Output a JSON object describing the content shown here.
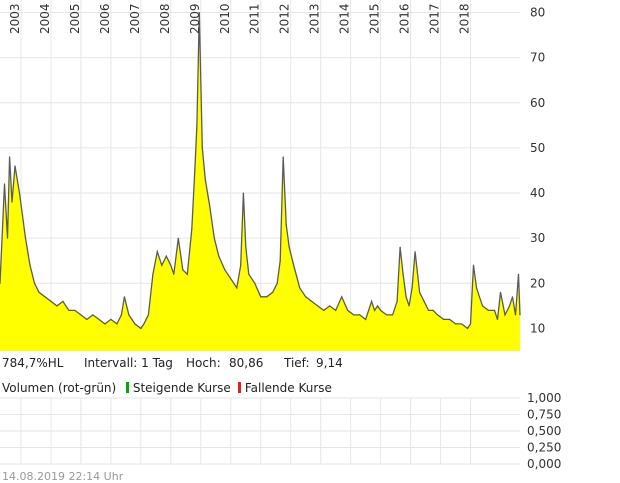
{
  "chart_data": [
    {
      "type": "area",
      "x_tick_labels": [
        "2003",
        "2004",
        "2005",
        "2006",
        "2007",
        "2008",
        "2009",
        "2010",
        "2011",
        "2012",
        "2013",
        "2014",
        "2015",
        "2016",
        "2017",
        "2018"
      ],
      "y_tick_labels": [
        "10",
        "20",
        "30",
        "40",
        "50",
        "60",
        "70",
        "80"
      ],
      "ylim": [
        5,
        81
      ],
      "xlim": [
        2002.3,
        2019.65
      ],
      "grid": true,
      "fill_color": "#ffff00",
      "line_color": "#5a5a5a",
      "series": [
        {
          "x": [
            2002.3,
            2002.45,
            2002.55,
            2002.62,
            2002.7,
            2002.8,
            2002.95,
            2003.05,
            2003.15,
            2003.3,
            2003.45,
            2003.6,
            2003.8,
            2004.0,
            2004.2,
            2004.4,
            2004.6,
            2004.8,
            2005.0,
            2005.2,
            2005.4,
            2005.6,
            2005.8,
            2006.0,
            2006.2,
            2006.35,
            2006.45,
            2006.6,
            2006.8,
            2007.0,
            2007.1,
            2007.25,
            2007.4,
            2007.55,
            2007.7,
            2007.85,
            2008.0,
            2008.1,
            2008.25,
            2008.4,
            2008.55,
            2008.7,
            2008.8,
            2008.87,
            2008.95,
            2009.05,
            2009.15,
            2009.3,
            2009.45,
            2009.6,
            2009.8,
            2010.0,
            2010.2,
            2010.33,
            2010.42,
            2010.5,
            2010.6,
            2010.8,
            2011.0,
            2011.2,
            2011.4,
            2011.55,
            2011.65,
            2011.75,
            2011.85,
            2011.95,
            2012.1,
            2012.3,
            2012.5,
            2012.7,
            2012.9,
            2013.1,
            2013.3,
            2013.5,
            2013.7,
            2013.9,
            2014.1,
            2014.3,
            2014.5,
            2014.6,
            2014.7,
            2014.8,
            2014.9,
            2015.0,
            2015.2,
            2015.4,
            2015.55,
            2015.65,
            2015.75,
            2015.85,
            2015.95,
            2016.05,
            2016.15,
            2016.3,
            2016.45,
            2016.6,
            2016.75,
            2016.9,
            2017.1,
            2017.3,
            2017.5,
            2017.7,
            2017.9,
            2018.0,
            2018.1,
            2018.2,
            2018.4,
            2018.6,
            2018.8,
            2018.9,
            2019.0,
            2019.15,
            2019.3,
            2019.4,
            2019.5,
            2019.6,
            2019.65
          ],
          "y": [
            20,
            42,
            30,
            48,
            38,
            46,
            40,
            35,
            30,
            24,
            20,
            18,
            17,
            16,
            15,
            16,
            14,
            14,
            13,
            12,
            13,
            12,
            11,
            12,
            11,
            13,
            17,
            13,
            11,
            10,
            11,
            13,
            22,
            27,
            24,
            26,
            24,
            22,
            30,
            23,
            22,
            32,
            45,
            55,
            80,
            50,
            43,
            37,
            30,
            26,
            23,
            21,
            19,
            24,
            40,
            28,
            22,
            20,
            17,
            17,
            18,
            20,
            25,
            48,
            33,
            28,
            24,
            19,
            17,
            16,
            15,
            14,
            15,
            14,
            17,
            14,
            13,
            13,
            12,
            14,
            16,
            14,
            15,
            14,
            13,
            13,
            16,
            28,
            22,
            17,
            15,
            19,
            27,
            18,
            16,
            14,
            14,
            13,
            12,
            12,
            11,
            11,
            10,
            11,
            24,
            19,
            15,
            14,
            14,
            12,
            18,
            13,
            15,
            17,
            13,
            22,
            13
          ],
          "unit": "%"
        }
      ]
    },
    {
      "type": "bar",
      "title": "Volumen (rot-grün)",
      "y_tick_labels": [
        "1,000",
        "0,750",
        "0,500",
        "0,250",
        "0,000"
      ],
      "ylim": [
        0,
        1
      ],
      "series": [
        {
          "name": "Steigende Kurse",
          "color": "#00aa00",
          "values": []
        },
        {
          "name": "Fallende Kurse",
          "color": "#dd2222",
          "values": []
        }
      ]
    }
  ],
  "stats": {
    "range_label": "784,7%HL",
    "interval_label": "Intervall: 1 Tag",
    "high_label": "Hoch:",
    "high_value": "80,86",
    "low_label": "Tief:",
    "low_value": "9,14"
  },
  "legend": {
    "title": "Volumen (rot-grün)",
    "rising": "Steigende Kurse",
    "falling": "Fallende Kurse"
  },
  "timestamp": "14.08.2019 22:14 Uhr"
}
